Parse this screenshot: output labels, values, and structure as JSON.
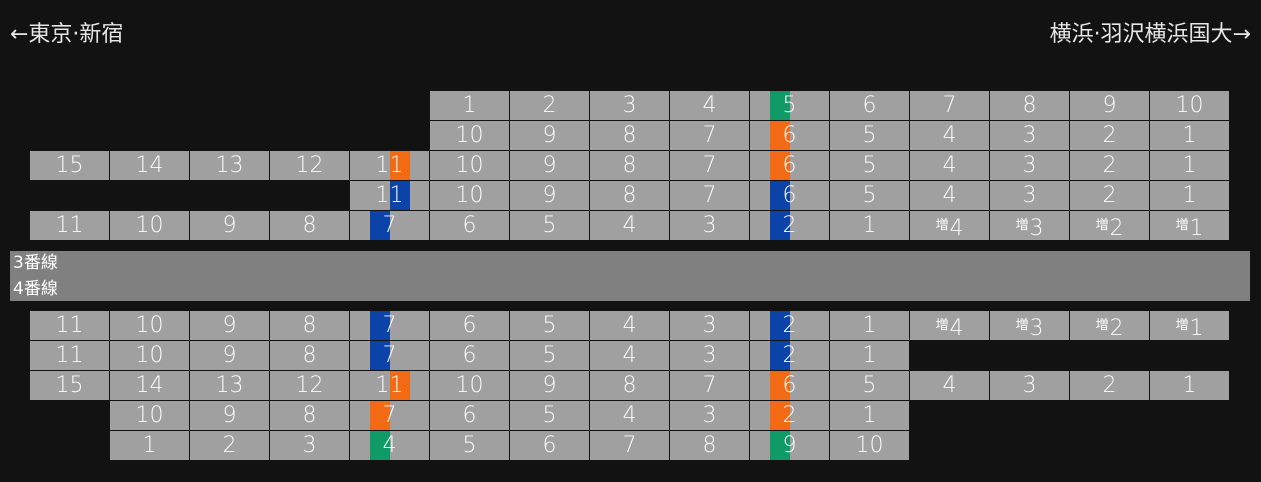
{
  "header": {
    "left_direction": "←東京·新宿",
    "right_direction": "横浜·羽沢横浜国大→"
  },
  "platform": {
    "tracks": [
      "3番線",
      "4番線"
    ]
  },
  "colors": {
    "car": "#a0a0a0",
    "green": "#0f9a66",
    "orange": "#f26a14",
    "blue": "#0b43a8"
  },
  "upper_rows": [
    {
      "start_slot": 5,
      "cars": [
        "1",
        "2",
        "3",
        "4",
        {
          "t": "5",
          "s": "green"
        },
        "6",
        "7",
        "8",
        "9",
        "10"
      ]
    },
    {
      "start_slot": 5,
      "cars": [
        "10",
        "9",
        "8",
        "7",
        {
          "t": "6",
          "s": "orange"
        },
        "5",
        "4",
        "3",
        "2",
        "1"
      ]
    },
    {
      "start_slot": 0,
      "cars": [
        "15",
        "14",
        "13",
        "12",
        {
          "t": "11",
          "s": "orange"
        },
        "10",
        "9",
        "8",
        "7",
        {
          "t": "6",
          "s": "orange"
        },
        "5",
        "4",
        "3",
        "2",
        "1"
      ]
    },
    {
      "start_slot": 4,
      "cars": [
        {
          "t": "11",
          "s": "blue"
        },
        "10",
        "9",
        "8",
        "7",
        {
          "t": "6",
          "s": "blue"
        },
        "5",
        "4",
        "3",
        "2",
        "1"
      ]
    },
    {
      "start_slot": 0,
      "cars": [
        "11",
        "10",
        "9",
        "8",
        {
          "t": "7",
          "s": "blue"
        },
        "6",
        "5",
        "4",
        "3",
        {
          "t": "2",
          "s": "blue"
        },
        "1",
        {
          "t": "4",
          "p": "増"
        },
        {
          "t": "3",
          "p": "増"
        },
        {
          "t": "2",
          "p": "増"
        },
        {
          "t": "1",
          "p": "増"
        }
      ]
    }
  ],
  "lower_rows": [
    {
      "start_slot": 0,
      "cars": [
        "11",
        "10",
        "9",
        "8",
        {
          "t": "7",
          "s": "blue"
        },
        "6",
        "5",
        "4",
        "3",
        {
          "t": "2",
          "s": "blue"
        },
        "1",
        {
          "t": "4",
          "p": "増"
        },
        {
          "t": "3",
          "p": "増"
        },
        {
          "t": "2",
          "p": "増"
        },
        {
          "t": "1",
          "p": "増"
        }
      ]
    },
    {
      "start_slot": 0,
      "cars": [
        "11",
        "10",
        "9",
        "8",
        {
          "t": "7",
          "s": "blue"
        },
        "6",
        "5",
        "4",
        "3",
        {
          "t": "2",
          "s": "blue"
        },
        "1"
      ]
    },
    {
      "start_slot": 0,
      "cars": [
        "15",
        "14",
        "13",
        "12",
        {
          "t": "11",
          "s": "orange"
        },
        "10",
        "9",
        "8",
        "7",
        {
          "t": "6",
          "s": "orange"
        },
        "5",
        "4",
        "3",
        "2",
        "1"
      ]
    },
    {
      "start_slot": 1,
      "cars": [
        "10",
        "9",
        "8",
        {
          "t": "7",
          "s": "orange"
        },
        "6",
        "5",
        "4",
        "3",
        {
          "t": "2",
          "s": "orange"
        },
        "1"
      ]
    },
    {
      "start_slot": 1,
      "cars": [
        "1",
        "2",
        "3",
        {
          "t": "4",
          "s": "green"
        },
        "5",
        "6",
        "7",
        "8",
        {
          "t": "9",
          "s": "green"
        },
        "10"
      ]
    }
  ]
}
